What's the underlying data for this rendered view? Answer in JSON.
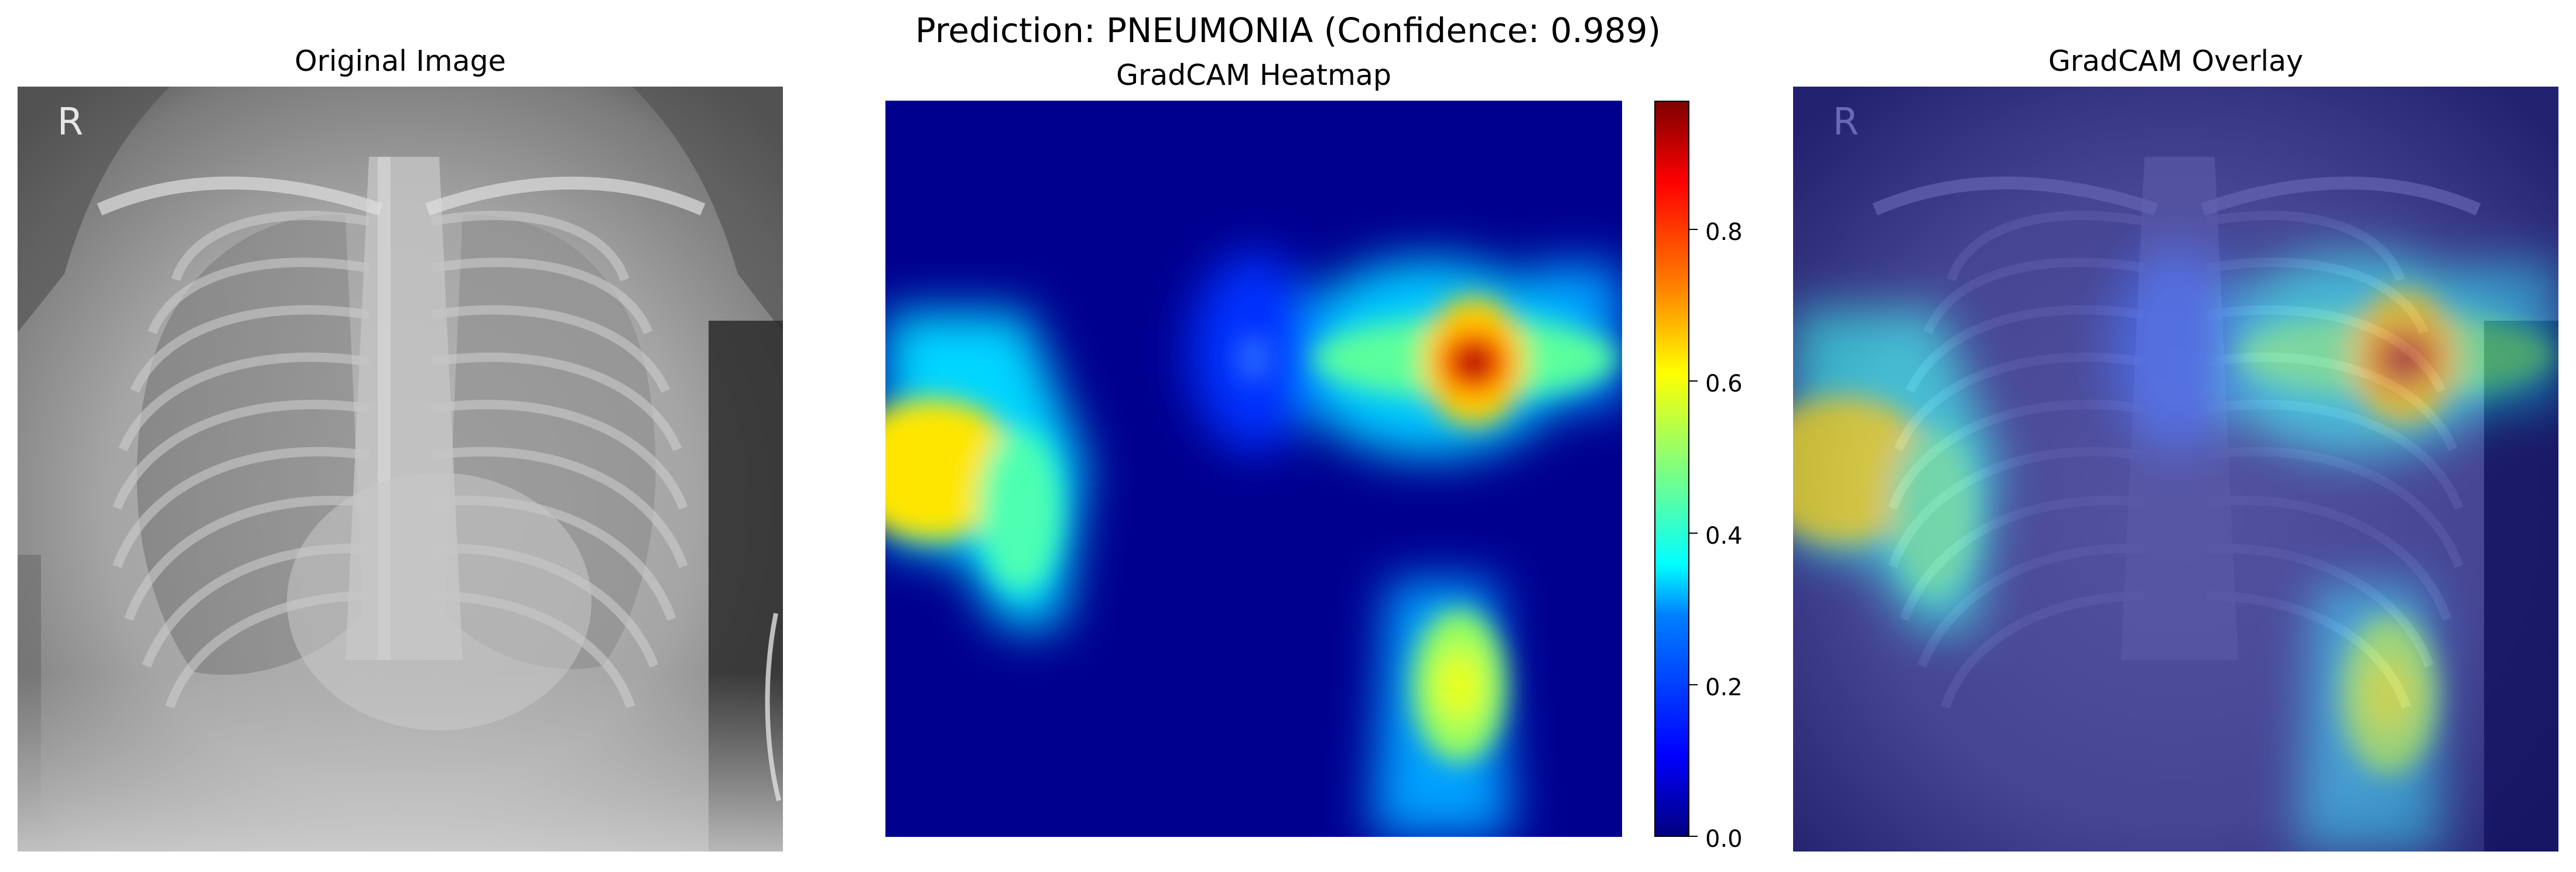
{
  "figure": {
    "suptitle": "Prediction: PNEUMONIA (Confidence: 0.989)"
  },
  "panels": {
    "original": {
      "title": "Original Image"
    },
    "heatmap": {
      "title": "GradCAM Heatmap"
    },
    "overlay": {
      "title": "GradCAM Overlay"
    }
  },
  "colorbar": {
    "colormap": "jet",
    "range": [
      0.0,
      0.97
    ],
    "ticks": [
      "0.0",
      "0.2",
      "0.4",
      "0.6",
      "0.8"
    ]
  },
  "heatmap_hotspots": [
    {
      "location": "right-upper (image coords)",
      "value": 0.97
    },
    {
      "location": "left-middle",
      "value": 0.65
    },
    {
      "location": "right-lower",
      "value": 0.6
    },
    {
      "location": "center-upper",
      "value": 0.2
    }
  ],
  "image_markers": {
    "xray_side_letter": "R"
  }
}
